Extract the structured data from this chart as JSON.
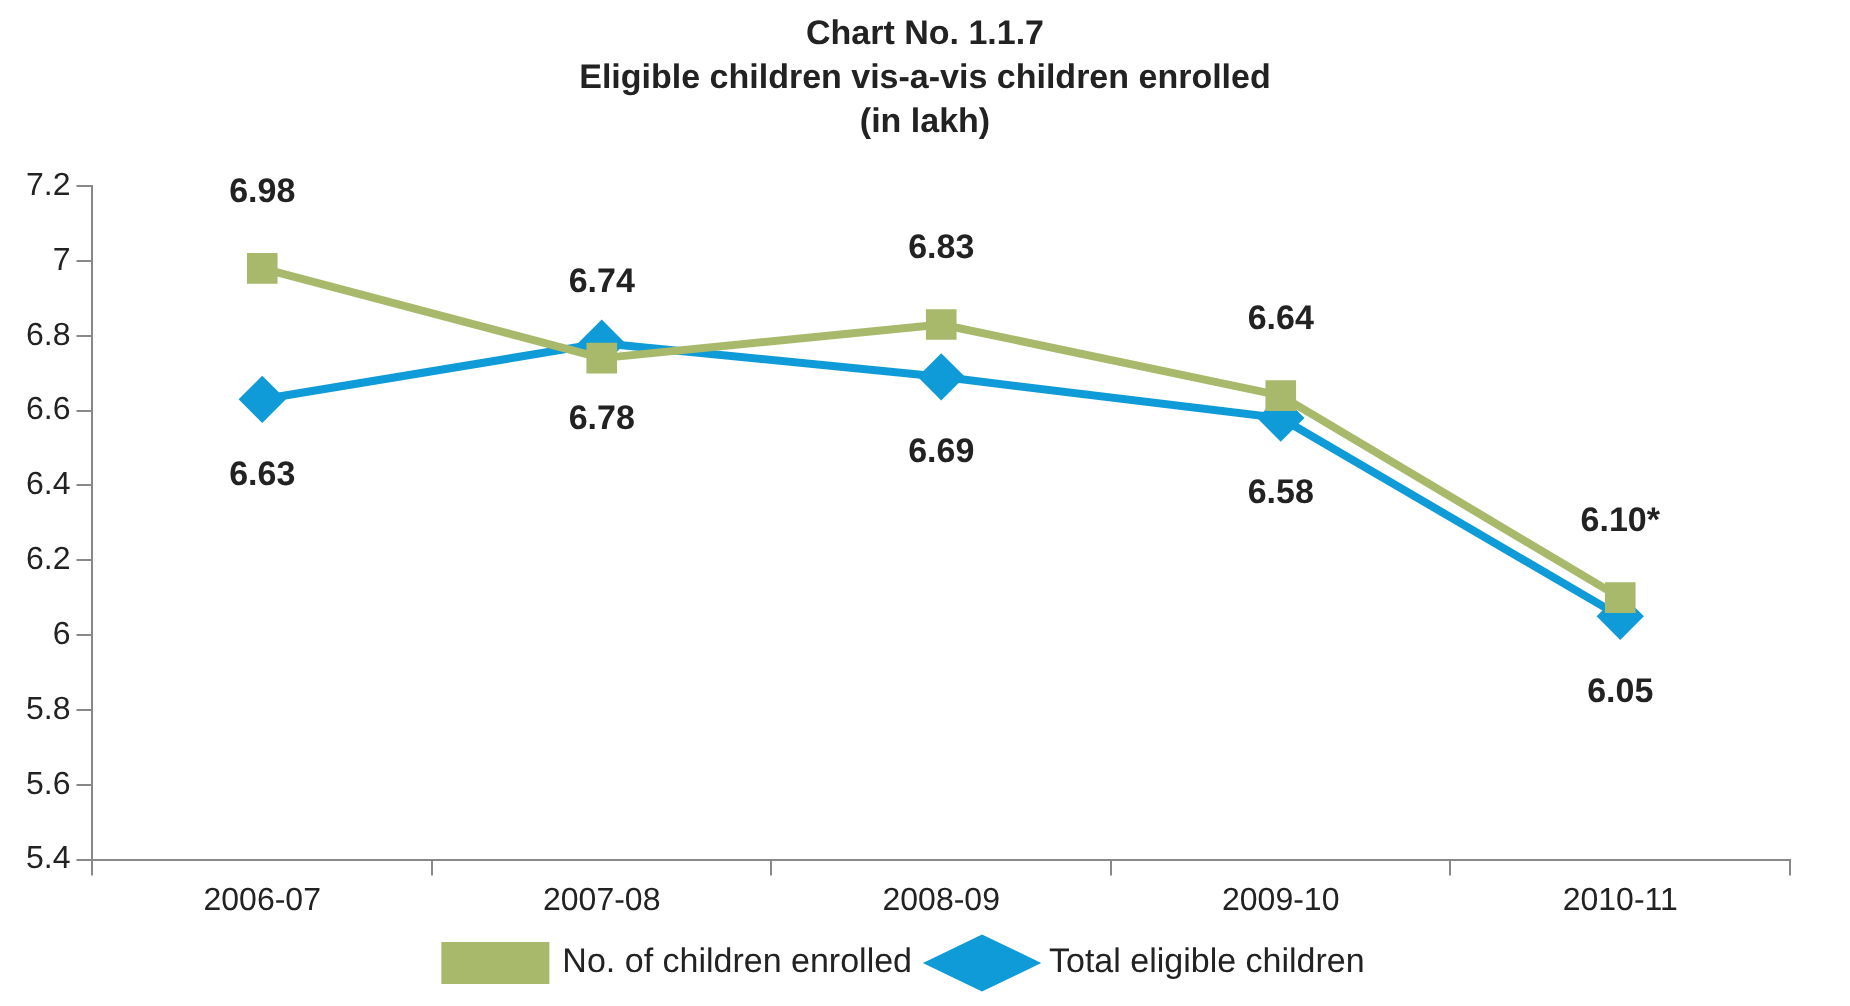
{
  "chart_data": {
    "type": "line",
    "title": "Chart No. 1.1.7",
    "subtitle": "Eligible children vis-a-vis children enrolled\n(in lakh)",
    "categories": [
      "2006-07",
      "2007-08",
      "2008-09",
      "2009-10",
      "2010-11"
    ],
    "series": [
      {
        "name": "Total eligible children",
        "color": "#0f9bd7",
        "marker": "diamond",
        "values": [
          6.63,
          6.78,
          6.69,
          6.58,
          6.05
        ],
        "value_labels": [
          "6.63",
          "6.78",
          "6.69",
          "6.58",
          "6.05"
        ]
      },
      {
        "name": "No. of children enrolled",
        "color": "#a8b96b",
        "marker": "square",
        "values": [
          6.98,
          6.74,
          6.83,
          6.64,
          6.1
        ],
        "value_labels": [
          "6.98",
          "6.74",
          "6.83",
          "6.64",
          "6.10*"
        ]
      }
    ],
    "ylim": [
      5.4,
      7.2
    ],
    "yticks": [
      5.4,
      5.6,
      5.8,
      6,
      6.2,
      6.4,
      6.6,
      6.8,
      7,
      7.2
    ],
    "grid": false,
    "legend": "bottom"
  }
}
